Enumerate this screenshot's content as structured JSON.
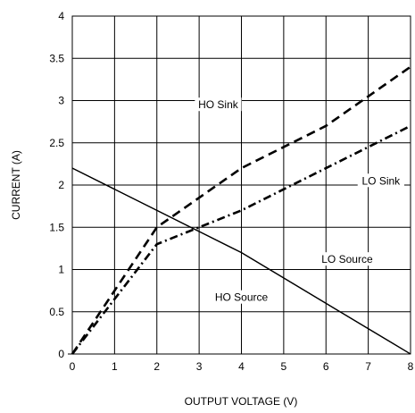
{
  "chart_data": {
    "type": "line",
    "title": "",
    "xlabel": "OUTPUT VOLTAGE (V)",
    "ylabel": "CURRENT (A)",
    "xlim": [
      0,
      8
    ],
    "ylim": [
      0,
      4
    ],
    "xticks": [
      "0",
      "1",
      "2",
      "3",
      "4",
      "5",
      "6",
      "7",
      "8"
    ],
    "yticks": [
      "0",
      "0.5",
      "1",
      "1.5",
      "2",
      "2.5",
      "3",
      "3.5",
      "4"
    ],
    "grid": true,
    "series": [
      {
        "name": "HO Sink",
        "style": "dashed",
        "x": [
          0,
          1,
          2,
          3,
          4,
          5,
          6,
          7,
          8
        ],
        "y": [
          0,
          0.75,
          1.5,
          1.85,
          2.2,
          2.45,
          2.7,
          3.05,
          3.4
        ]
      },
      {
        "name": "LO Sink",
        "style": "dashdot",
        "x": [
          0,
          1,
          2,
          3,
          4,
          5,
          6,
          7,
          8
        ],
        "y": [
          0,
          0.65,
          1.3,
          1.5,
          1.7,
          1.95,
          2.2,
          2.45,
          2.7
        ]
      },
      {
        "name": "HO Source",
        "style": "solid",
        "x": [
          0,
          1,
          2,
          3,
          4,
          5,
          6,
          7,
          8
        ],
        "y": [
          2.2,
          1.95,
          1.7,
          1.45,
          1.2,
          0.9,
          0.6,
          0.3,
          0
        ]
      },
      {
        "name": "LO Source",
        "style": "solid",
        "x": [
          0,
          1,
          2,
          3,
          4,
          5,
          6,
          7,
          8
        ],
        "y": [
          2.2,
          1.95,
          1.7,
          1.45,
          1.2,
          0.9,
          0.6,
          0.3,
          0
        ]
      }
    ],
    "annotations": [
      {
        "text": "HO Sink",
        "x": 3.45,
        "y": 2.95
      },
      {
        "text": "LO Sink",
        "x": 7.3,
        "y": 2.05
      },
      {
        "text": "LO Source",
        "x": 6.5,
        "y": 1.12
      },
      {
        "text": "HO Source",
        "x": 4.0,
        "y": 0.67
      }
    ]
  }
}
